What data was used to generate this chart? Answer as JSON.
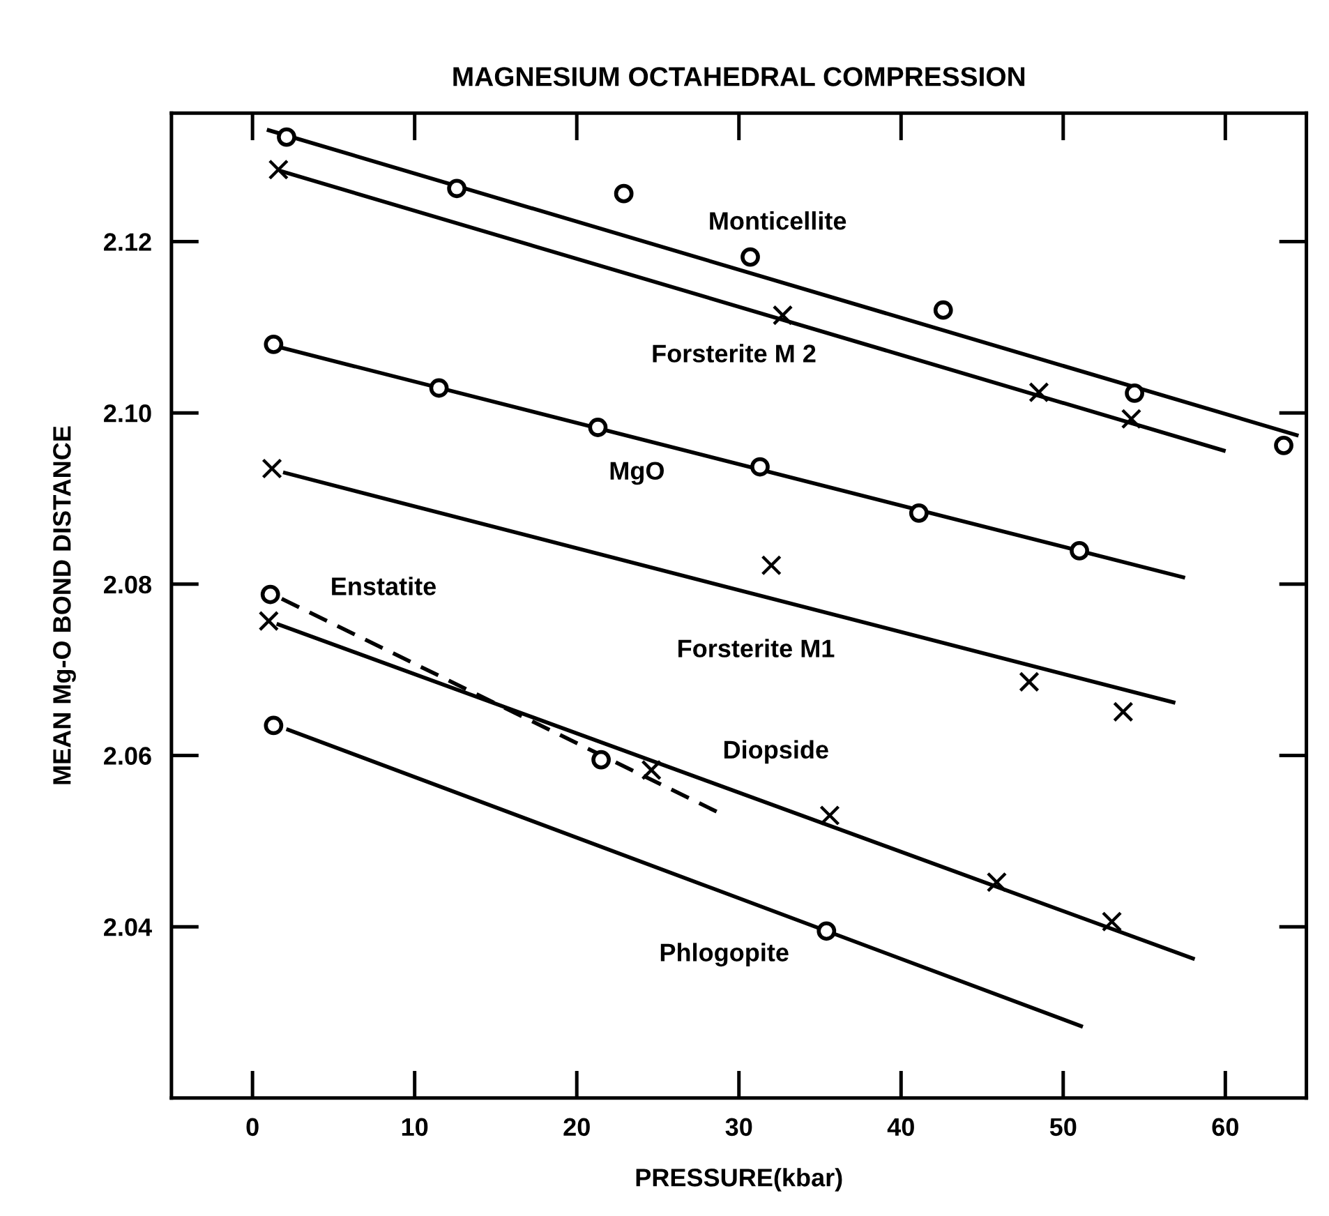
{
  "chart_data": {
    "type": "scatter",
    "title": "MAGNESIUM OCTAHEDRAL COMPRESSION",
    "xlabel": "PRESSURE(kbar)",
    "ylabel": "MEAN Mg-O BOND DISTANCE",
    "xlim": [
      -5,
      65
    ],
    "ylim": [
      2.02,
      2.135
    ],
    "xticks": [
      0,
      10,
      20,
      30,
      40,
      50,
      60
    ],
    "yticks": [
      2.04,
      2.06,
      2.08,
      {
        "value": 2.1,
        "label": "2.10"
      },
      2.12
    ],
    "grid": false,
    "legend": false,
    "series": [
      {
        "marker": "circle",
        "color": "#000000",
        "x": [
          2.1,
          12.6,
          22.9,
          30.7,
          42.6,
          54.4,
          63.6
        ],
        "values": [
          2.1322,
          2.1262,
          2.1256,
          2.1182,
          2.112,
          2.1023,
          2.0962
        ]
      },
      {
        "type": "line",
        "name": "Monticellite",
        "marker": "none",
        "line_style": "solid",
        "color": "#000000",
        "x": [
          1,
          64.4
        ],
        "values": [
          2.133,
          2.0974
        ]
      },
      {
        "marker": "cross",
        "color": "#000000",
        "x": [
          1.6,
          32.7,
          48.5,
          54.2
        ],
        "values": [
          2.1284,
          2.1114,
          2.1024,
          2.0993
        ]
      },
      {
        "type": "line",
        "name": "Forsterite M 2",
        "marker": "none",
        "line_style": "solid",
        "color": "#000000",
        "x": [
          1.8,
          59.9
        ],
        "values": [
          2.1282,
          2.0956
        ]
      },
      {
        "marker": "circle",
        "color": "#000000",
        "x": [
          1.3,
          11.5,
          21.3,
          31.3,
          41.1,
          51.0
        ],
        "values": [
          2.108,
          2.1029,
          2.0983,
          2.0937,
          2.0883,
          2.0839
        ]
      },
      {
        "type": "line",
        "name": "MgO",
        "marker": "none",
        "line_style": "solid",
        "color": "#000000",
        "x": [
          1.8,
          57.4
        ],
        "values": [
          2.1076,
          2.0808
        ]
      },
      {
        "marker": "cross",
        "color": "#000000",
        "x": [
          1.2,
          32.0,
          47.9,
          53.7
        ],
        "values": [
          2.0935,
          2.0822,
          2.0686,
          2.0651
        ]
      },
      {
        "type": "line",
        "name": "Forsterite M1",
        "marker": "none",
        "line_style": "solid",
        "color": "#000000",
        "x": [
          2,
          56.8
        ],
        "values": [
          2.093,
          2.0662
        ]
      },
      {
        "marker": "circle",
        "color": "#000000",
        "x": [
          1.1,
          21.5
        ],
        "values": [
          2.0788,
          2.0595
        ]
      },
      {
        "type": "line",
        "name": "Enstatite",
        "marker": "none",
        "line_style": "dashed",
        "color": "#000000",
        "x": [
          1.8,
          29.1
        ],
        "values": [
          2.0783,
          2.053
        ]
      },
      {
        "marker": "cross",
        "color": "#000000",
        "x": [
          1.0,
          24.6,
          35.6,
          45.9,
          53.0
        ],
        "values": [
          2.0757,
          2.0583,
          2.053,
          2.0452,
          2.0406
        ]
      },
      {
        "type": "line",
        "name": "Diopside",
        "marker": "none",
        "line_style": "solid",
        "color": "#000000",
        "x": [
          1.6,
          58.0
        ],
        "values": [
          2.0753,
          2.0363
        ]
      },
      {
        "marker": "circle",
        "color": "#000000",
        "x": [
          1.3,
          35.4
        ],
        "values": [
          2.0635,
          2.0395
        ]
      },
      {
        "type": "line",
        "name": "Phlogopite",
        "marker": "none",
        "line_style": "solid",
        "color": "#000000",
        "x": [
          2.2,
          51.1
        ],
        "values": [
          2.063,
          2.0284
        ]
      }
    ]
  }
}
